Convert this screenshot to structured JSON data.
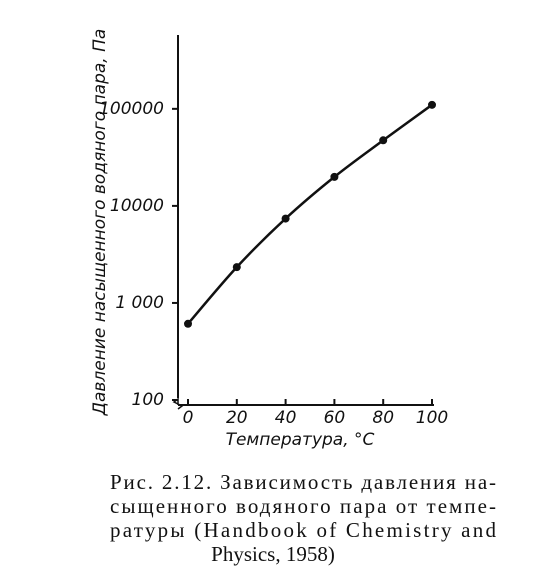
{
  "chart_data": {
    "type": "line",
    "y_label": "Давление насыщенного водяного пара, Па",
    "x_label": "Температура, °С",
    "x": [
      0,
      20,
      40,
      60,
      80,
      100
    ],
    "series": [
      {
        "values": [
          610,
          2340,
          7400,
          19900,
          47400,
          110000
        ],
        "color": "#111111"
      }
    ],
    "xlim": [
      0,
      100
    ],
    "xticks": [
      0,
      20,
      40,
      60,
      80,
      100
    ],
    "ylim": [
      100,
      500000
    ],
    "yscale": "log",
    "yticks": [
      100,
      {
        "value": 1000,
        "label": "1 000"
      },
      10000,
      100000
    ],
    "caption": [
      "Рис. 2.12. Зависимость давления на-",
      "сыщенного водяного пара от темпе-",
      "ратуры (Handbook of Chemistry and",
      "Physics, 1958)"
    ]
  }
}
